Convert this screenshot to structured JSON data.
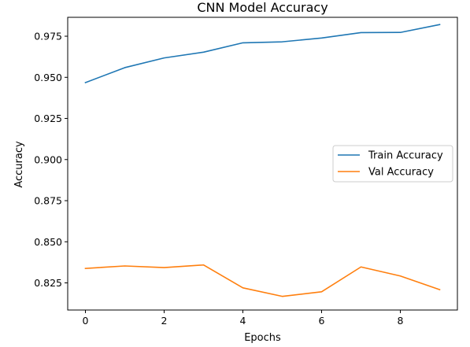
{
  "chart_data": {
    "type": "line",
    "title": "CNN Model Accuracy",
    "xlabel": "Epochs",
    "ylabel": "Accuracy",
    "x": [
      0,
      1,
      2,
      3,
      4,
      5,
      6,
      7,
      8,
      9
    ],
    "xlim": [
      -0.45,
      9.45
    ],
    "ylim": [
      0.8085,
      0.9865
    ],
    "xticks": [
      0,
      2,
      4,
      6,
      8
    ],
    "yticks": [
      0.825,
      0.85,
      0.875,
      0.9,
      0.925,
      0.95,
      0.975
    ],
    "ytick_labels": [
      "0.825",
      "0.850",
      "0.875",
      "0.900",
      "0.925",
      "0.950",
      "0.975"
    ],
    "grid": false,
    "legend_position": "center-right",
    "series": [
      {
        "name": "Train Accuracy",
        "color": "#1f77b4",
        "values": [
          0.9468,
          0.9559,
          0.9618,
          0.9653,
          0.971,
          0.9716,
          0.9739,
          0.9772,
          0.9773,
          0.9821
        ]
      },
      {
        "name": "Val Accuracy",
        "color": "#ff7f0e",
        "values": [
          0.8338,
          0.8353,
          0.8343,
          0.8359,
          0.822,
          0.8168,
          0.8196,
          0.8347,
          0.8292,
          0.8209
        ]
      }
    ]
  }
}
